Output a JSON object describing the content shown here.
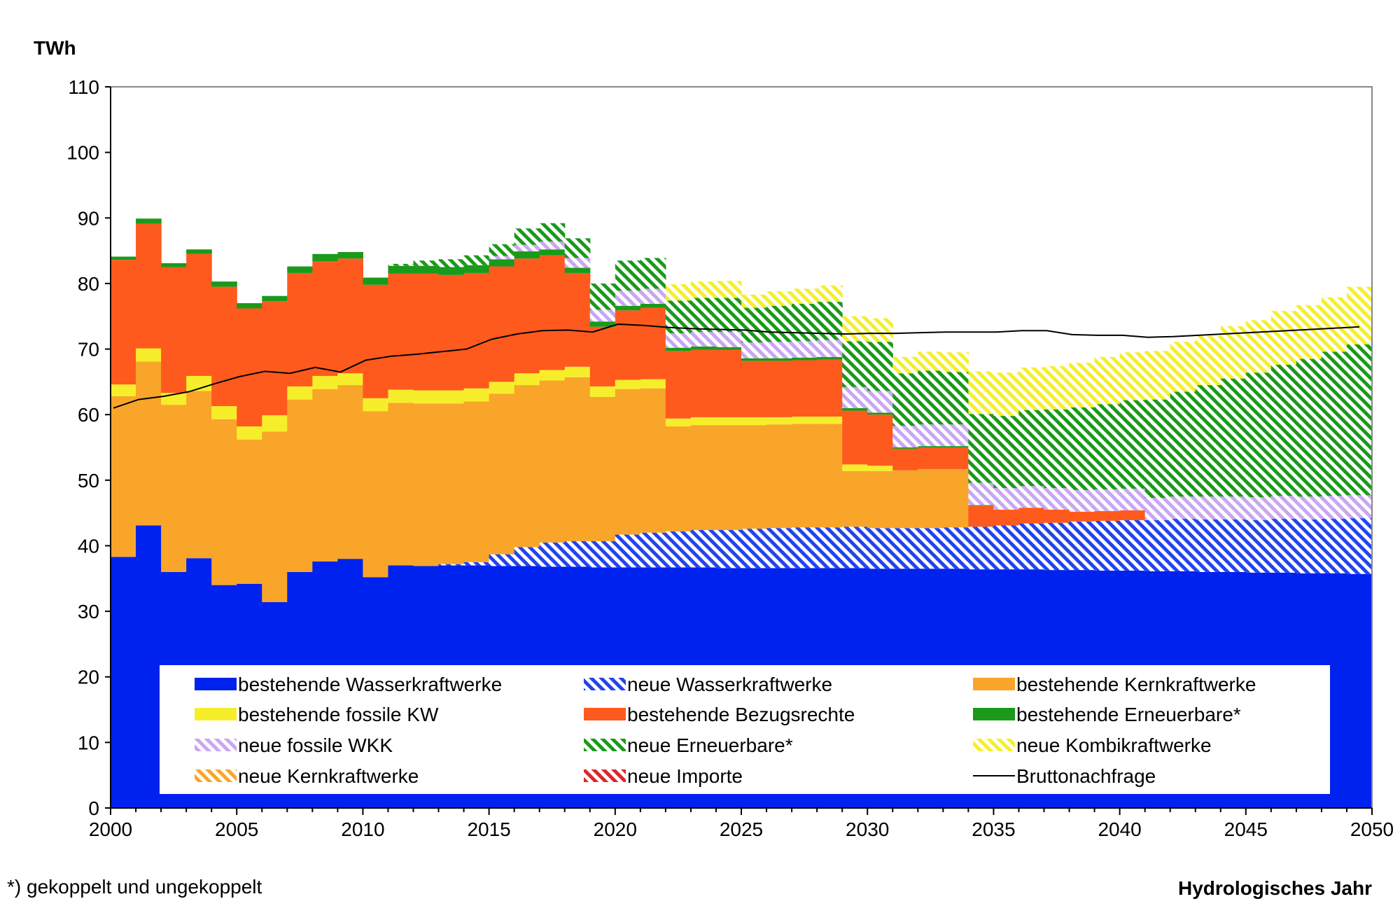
{
  "chart_data": {
    "type": "area",
    "ylabel": "TWh",
    "xlabel": "Hydrologisches Jahr",
    "footnote": "*) gekoppelt und ungekoppelt",
    "ylim": [
      0,
      110
    ],
    "xlim": [
      2000,
      2050
    ],
    "yticks": [
      0,
      10,
      20,
      30,
      40,
      50,
      60,
      70,
      80,
      90,
      100,
      110
    ],
    "xticks": [
      2000,
      2005,
      2010,
      2015,
      2020,
      2025,
      2030,
      2035,
      2040,
      2045,
      2050
    ],
    "grid": false,
    "legend_position": "bottom-inside",
    "x": [
      2000,
      2001,
      2002,
      2003,
      2004,
      2005,
      2006,
      2007,
      2008,
      2009,
      2010,
      2011,
      2012,
      2013,
      2014,
      2015,
      2016,
      2017,
      2018,
      2019,
      2020,
      2021,
      2022,
      2023,
      2024,
      2025,
      2026,
      2027,
      2028,
      2029,
      2030,
      2031,
      2032,
      2033,
      2034,
      2035,
      2036,
      2037,
      2038,
      2039,
      2040,
      2041,
      2042,
      2043,
      2044,
      2045,
      2046,
      2047,
      2048,
      2049
    ],
    "series": [
      {
        "name": "bestehende Wasserkraftwerke",
        "color": "#0022ee",
        "pattern": "solid",
        "values": [
          38.3,
          43.1,
          36.0,
          38.1,
          34.0,
          34.2,
          31.4,
          36.0,
          37.6,
          38.0,
          35.2,
          37.0,
          36.9,
          37.0,
          37.0,
          36.9,
          36.9,
          36.8,
          36.8,
          36.7,
          36.7,
          36.7,
          36.7,
          36.7,
          36.6,
          36.6,
          36.6,
          36.6,
          36.6,
          36.6,
          36.5,
          36.5,
          36.5,
          36.5,
          36.4,
          36.4,
          36.4,
          36.3,
          36.3,
          36.2,
          36.2,
          36.1,
          36.1,
          36.0,
          36.0,
          35.9,
          35.9,
          35.8,
          35.8,
          35.7
        ]
      },
      {
        "name": "neue Wasserkraftwerke",
        "color": "#2244ee",
        "pattern": "hatch",
        "values": [
          0,
          0,
          0,
          0,
          0,
          0,
          0,
          0,
          0,
          0,
          0,
          0,
          0,
          0.2,
          0.5,
          1.8,
          2.9,
          3.7,
          3.9,
          4.0,
          5.0,
          5.3,
          5.5,
          5.7,
          5.8,
          6.0,
          6.1,
          6.2,
          6.2,
          6.3,
          6.2,
          6.2,
          6.2,
          6.3,
          6.5,
          6.7,
          7.0,
          7.2,
          7.4,
          7.6,
          7.7,
          7.8,
          8.0,
          8.0,
          8.0,
          8.0,
          8.2,
          8.2,
          8.3,
          8.5
        ]
      },
      {
        "name": "bestehende Kernkraftwerke",
        "color": "#f8a52a",
        "pattern": "solid",
        "values": [
          24.5,
          25.0,
          25.5,
          25.5,
          25.3,
          22.0,
          26.0,
          26.3,
          26.3,
          26.5,
          25.3,
          24.8,
          24.8,
          24.5,
          24.5,
          24.5,
          24.7,
          24.7,
          25.0,
          22.0,
          22.2,
          22.0,
          16.0,
          16.0,
          16.0,
          15.8,
          15.8,
          15.8,
          15.8,
          8.5,
          8.7,
          8.8,
          9.0,
          8.9,
          0,
          0,
          0,
          0,
          0,
          0,
          0,
          0,
          0,
          0,
          0,
          0,
          0,
          0,
          0,
          0
        ]
      },
      {
        "name": "bestehende fossile KW",
        "color": "#f6ee2a",
        "pattern": "solid",
        "values": [
          1.8,
          2.0,
          1.8,
          2.3,
          2.0,
          2.0,
          2.5,
          2.0,
          2.0,
          1.8,
          2.0,
          2.0,
          2.0,
          2.0,
          2.0,
          1.8,
          1.8,
          1.6,
          1.6,
          1.6,
          1.4,
          1.4,
          1.2,
          1.2,
          1.2,
          1.2,
          1.1,
          1.1,
          1.1,
          1.0,
          0.8,
          0,
          0,
          0,
          0,
          0,
          0,
          0,
          0,
          0,
          0,
          0,
          0,
          0,
          0,
          0,
          0,
          0,
          0,
          0
        ]
      },
      {
        "name": "bestehende Bezugsrechte",
        "color": "#ff5a1e",
        "pattern": "solid",
        "values": [
          19.0,
          19.0,
          19.2,
          18.6,
          18.2,
          18.0,
          17.4,
          17.3,
          17.5,
          17.5,
          17.3,
          17.7,
          17.8,
          17.6,
          17.6,
          17.6,
          17.5,
          17.5,
          14.3,
          9.1,
          10.6,
          10.9,
          10.3,
          10.3,
          10.3,
          8.6,
          8.6,
          8.6,
          8.7,
          8.2,
          7.8,
          3.3,
          3.3,
          3.3,
          3.2,
          2.4,
          2.4,
          2.0,
          1.5,
          1.5,
          1.5,
          0,
          0,
          0,
          0,
          0,
          0,
          0,
          0,
          0
        ]
      },
      {
        "name": "bestehende Erneuerbare*",
        "color": "#1a9a1a",
        "pattern": "solid",
        "values": [
          0.5,
          0.8,
          0.6,
          0.7,
          0.8,
          0.8,
          0.8,
          1.0,
          1.1,
          1.0,
          1.1,
          1.2,
          1.2,
          1.2,
          1.2,
          1.1,
          1.1,
          0.9,
          0.8,
          0.8,
          0.7,
          0.6,
          0.5,
          0.5,
          0.4,
          0.4,
          0.4,
          0.4,
          0.4,
          0.4,
          0.3,
          0.2,
          0.2,
          0.2,
          0.1,
          0,
          0,
          0,
          0,
          0,
          0,
          0,
          0,
          0,
          0,
          0,
          0,
          0,
          0,
          0
        ]
      },
      {
        "name": "neue fossile WKK",
        "color": "#c9a6f2",
        "pattern": "hatch",
        "values": [
          0,
          0,
          0,
          0,
          0,
          0,
          0,
          0,
          0,
          0,
          0,
          0,
          0,
          0,
          0,
          0.5,
          1.0,
          1.2,
          1.5,
          1.8,
          2.3,
          2.3,
          2.2,
          2.2,
          2.3,
          2.4,
          2.5,
          2.5,
          2.6,
          3.2,
          3.3,
          3.3,
          3.3,
          3.3,
          3.4,
          3.3,
          3.3,
          3.3,
          3.3,
          3.3,
          3.3,
          3.4,
          3.4,
          3.5,
          3.5,
          3.5,
          3.5,
          3.5,
          3.5,
          3.5
        ]
      },
      {
        "name": "neue Erneuerbare*",
        "color": "#1a9a1a",
        "pattern": "hatch",
        "values": [
          0,
          0,
          0,
          0,
          0,
          0,
          0,
          0,
          0,
          0,
          0,
          0.3,
          0.8,
          1.2,
          1.5,
          1.8,
          2.5,
          2.8,
          3.0,
          4.0,
          4.6,
          4.7,
          5.0,
          5.2,
          5.2,
          5.3,
          5.5,
          5.7,
          5.8,
          7.0,
          7.5,
          8.0,
          8.2,
          8.0,
          10.5,
          11.0,
          11.6,
          12.0,
          12.6,
          13.0,
          13.5,
          15.0,
          16.0,
          17.0,
          18.0,
          19.0,
          20.0,
          21.0,
          22.0,
          23.0
        ]
      },
      {
        "name": "neue Kombikraftwerke",
        "color": "#f6ee2a",
        "pattern": "hatch",
        "values": [
          0,
          0,
          0,
          0,
          0,
          0,
          0,
          0,
          0,
          0,
          0,
          0,
          0,
          0,
          0,
          0,
          0,
          0,
          0,
          0,
          0,
          0,
          2.5,
          2.5,
          2.6,
          2.0,
          2.2,
          2.3,
          2.5,
          3.8,
          3.6,
          2.5,
          2.9,
          3.0,
          6.5,
          6.6,
          6.5,
          6.6,
          6.8,
          7.2,
          7.3,
          7.4,
          7.6,
          7.5,
          8.0,
          8.0,
          8.2,
          8.2,
          8.3,
          8.8
        ]
      },
      {
        "name": "neue Kernkraftwerke",
        "color": "#f8a52a",
        "pattern": "hatch",
        "values": [
          0,
          0,
          0,
          0,
          0,
          0,
          0,
          0,
          0,
          0,
          0,
          0,
          0,
          0,
          0,
          0,
          0,
          0,
          0,
          0,
          0,
          0,
          0,
          0,
          0,
          0,
          0,
          0,
          0,
          0,
          0,
          0,
          0,
          0,
          0,
          0,
          0,
          0,
          0,
          0,
          0,
          0,
          0,
          0,
          0,
          0,
          0,
          0,
          0,
          0
        ]
      },
      {
        "name": "neue Importe",
        "color": "#d8282a",
        "pattern": "hatch",
        "values": [
          0,
          0,
          0,
          0,
          0,
          0,
          0,
          0,
          0,
          0,
          0,
          0,
          0,
          0,
          0,
          0,
          0,
          0,
          0,
          0,
          0,
          0,
          0,
          0,
          0,
          0,
          0,
          0,
          0,
          0,
          0,
          0,
          0,
          0,
          0,
          0,
          0,
          0,
          0,
          0,
          0,
          0,
          0,
          0,
          0,
          0,
          0,
          0,
          0,
          0
        ]
      }
    ],
    "line": {
      "name": "Bruttonachfrage",
      "color": "#000000",
      "x": [
        2000,
        2001,
        2002,
        2003,
        2004,
        2005,
        2006,
        2007,
        2008,
        2009,
        2010,
        2011,
        2012,
        2013,
        2014,
        2015,
        2016,
        2017,
        2018,
        2019,
        2020,
        2021,
        2022,
        2023,
        2024,
        2025,
        2026,
        2027,
        2028,
        2029,
        2030,
        2031,
        2032,
        2033,
        2034,
        2035,
        2036,
        2037,
        2038,
        2039,
        2040,
        2041,
        2042,
        2043,
        2044,
        2045,
        2046,
        2047,
        2048,
        2049,
        2050
      ],
      "values": [
        61.0,
        62.3,
        62.8,
        63.5,
        64.7,
        65.8,
        66.6,
        66.3,
        67.2,
        66.5,
        68.3,
        68.9,
        69.2,
        69.6,
        70.0,
        71.5,
        72.3,
        72.8,
        72.9,
        72.6,
        73.8,
        73.6,
        73.3,
        73.1,
        73.0,
        72.9,
        72.6,
        72.5,
        72.4,
        72.3,
        72.4,
        72.4,
        72.5,
        72.6,
        72.6,
        72.6,
        72.8,
        72.8,
        72.2,
        72.1,
        72.1,
        71.8,
        71.9,
        72.1,
        72.3,
        72.5,
        72.7,
        72.9,
        73.1,
        73.3,
        73.4
      ]
    }
  }
}
